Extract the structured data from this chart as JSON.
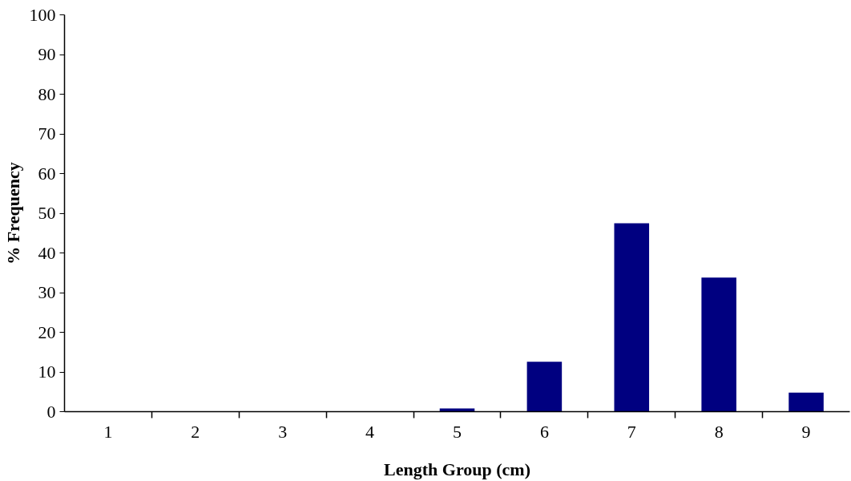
{
  "chart_data": {
    "type": "bar",
    "xlabel": "Length Group (cm)",
    "ylabel": "% Frequency",
    "categories": [
      "1",
      "2",
      "3",
      "4",
      "5",
      "6",
      "7",
      "8",
      "9"
    ],
    "values": [
      0,
      0,
      0,
      0,
      0.8,
      12.6,
      47.5,
      33.8,
      4.8
    ],
    "color": "#000080",
    "ylim": [
      0,
      100
    ],
    "yticks": [
      0,
      10,
      20,
      30,
      40,
      50,
      60,
      70,
      80,
      90,
      100
    ],
    "grid": false
  }
}
